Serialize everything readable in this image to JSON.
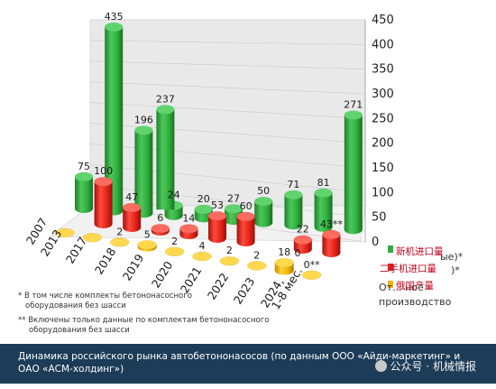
{
  "chart_data": {
    "type": "bar",
    "categories": [
      "2007",
      "2013",
      "2017",
      "2018",
      "2019",
      "2020",
      "2021",
      "2022",
      "2023",
      "2024,\n1-8 мес."
    ],
    "series": [
      {
        "name": "Импорт (новые)*",
        "values": [
          75,
          435,
          196,
          24,
          20,
          27,
          50,
          71,
          81,
          271
        ]
      },
      {
        "name": "Импорт (б/у)*",
        "values": [
          null,
          100,
          47,
          6,
          14,
          53,
          60,
          null,
          22,
          43
        ]
      },
      {
        "name": "Отечественное производство",
        "values": [
          null,
          null,
          2,
          5,
          2,
          4,
          2,
          2,
          18,
          0
        ]
      }
    ],
    "value_labels": {
      "new": [
        "75",
        "435",
        "196",
        "24",
        "20",
        "27",
        "50",
        "71",
        "81",
        "271"
      ],
      "used": [
        "",
        "100",
        "47",
        "6",
        "14",
        "53",
        "60",
        "",
        "22",
        "43**"
      ],
      "domestic": [
        "",
        "",
        "2",
        "5",
        "2",
        "4",
        "2",
        "2",
        "18",
        "0**"
      ]
    },
    "extra_label": {
      "text": "237",
      "value": 237
    },
    "extra_zero": "0",
    "yticks": [
      "0",
      "50",
      "100",
      "150",
      "200",
      "250",
      "300",
      "350",
      "400",
      "450"
    ],
    "ylim": [
      0,
      450
    ],
    "legend": {
      "line1_tail": "ые)*",
      "line2_tail": ")*",
      "line3": "От... ное",
      "line4": "производство",
      "cn_line1": "新机进口量",
      "cn_line2": "二手机进口量",
      "cn_line3": "俄国产量"
    },
    "colors": {
      "new": "#2fae3d",
      "used": "#e2231a",
      "domestic": "#f0b400"
    },
    "grid": true
  },
  "notes": {
    "note1_line1": "* В том числе комплекты бетононасосного",
    "note1_line2": "оборудования без шасси",
    "note2_line1": "** Включены только данные по комплектам бетононасосного",
    "note2_line2": "оборудования без шасси"
  },
  "footer": {
    "caption": "Динамика российского рынка автобетононасосов (по данным ООО «Айди-маркетинг» и ОАО «АСМ-холдинг»)",
    "watermark": "公众号 · 机械情报"
  }
}
